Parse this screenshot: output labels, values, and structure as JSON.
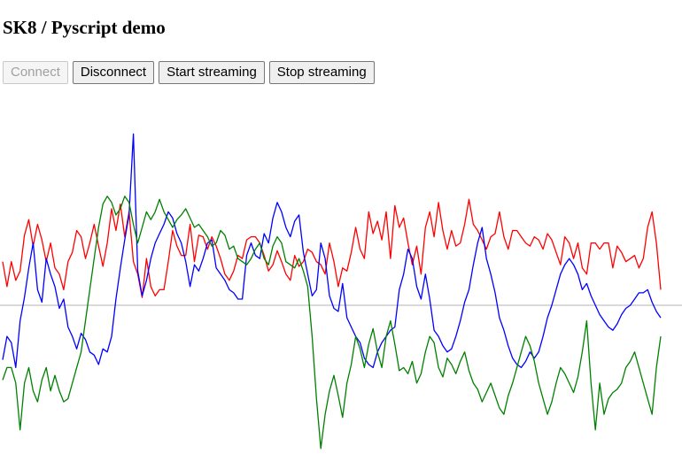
{
  "page": {
    "title": "SK8 / Pyscript demo"
  },
  "toolbar": {
    "connect_label": "Connect",
    "disconnect_label": "Disconnect",
    "start_label": "Start streaming",
    "stop_label": "Stop streaming"
  },
  "chart_data": {
    "type": "line",
    "ylim": [
      -1,
      1
    ],
    "zero_line": true,
    "grid": false,
    "series": [
      {
        "color": "#ff0000",
        "values": [
          0.28,
          0.12,
          0.28,
          0.16,
          0.22,
          0.45,
          0.55,
          0.38,
          0.52,
          0.42,
          0.28,
          0.4,
          0.24,
          0.2,
          0.1,
          0.28,
          0.34,
          0.48,
          0.44,
          0.3,
          0.4,
          0.52,
          0.38,
          0.25,
          0.4,
          0.62,
          0.48,
          0.65,
          0.44,
          0.6,
          0.28,
          0.2,
          0.05,
          0.3,
          0.12,
          0.06,
          0.1,
          0.1,
          0.28,
          0.48,
          0.38,
          0.32,
          0.32,
          0.52,
          0.28,
          0.45,
          0.44,
          0.36,
          0.44,
          0.38,
          0.3,
          0.2,
          0.16,
          0.22,
          0.32,
          0.3,
          0.42,
          0.44,
          0.44,
          0.4,
          0.32,
          0.22,
          0.26,
          0.35,
          0.28,
          0.2,
          0.16,
          0.32,
          0.25,
          0.28,
          0.36,
          0.34,
          0.28,
          0.26,
          0.2,
          0.4,
          0.28,
          0.12,
          0.24,
          0.22,
          0.34,
          0.5,
          0.36,
          0.3,
          0.6,
          0.46,
          0.54,
          0.42,
          0.6,
          0.3,
          0.64,
          0.5,
          0.56,
          0.4,
          0.26,
          0.38,
          0.2,
          0.5,
          0.6,
          0.44,
          0.66,
          0.48,
          0.36,
          0.48,
          0.38,
          0.4,
          0.52,
          0.68,
          0.52,
          0.48,
          0.42,
          0.36,
          0.44,
          0.46,
          0.6,
          0.44,
          0.36,
          0.48,
          0.48,
          0.44,
          0.4,
          0.38,
          0.44,
          0.42,
          0.36,
          0.46,
          0.42,
          0.34,
          0.26,
          0.44,
          0.4,
          0.3,
          0.4,
          0.24,
          0.2,
          0.4,
          0.4,
          0.36,
          0.4,
          0.4,
          0.24,
          0.38,
          0.34,
          0.28,
          0.3,
          0.32,
          0.24,
          0.3,
          0.5,
          0.6,
          0.4,
          0.1
        ]
      },
      {
        "color": "#0000ff",
        "values": [
          -0.35,
          -0.2,
          -0.24,
          -0.4,
          -0.1,
          0.05,
          0.24,
          0.4,
          0.1,
          0.02,
          0.3,
          0.2,
          0.12,
          -0.02,
          0.04,
          -0.14,
          -0.2,
          -0.28,
          -0.18,
          -0.22,
          -0.3,
          -0.32,
          -0.38,
          -0.28,
          -0.3,
          -0.2,
          0.04,
          0.24,
          0.42,
          0.58,
          1.1,
          0.22,
          0.06,
          0.16,
          0.3,
          0.4,
          0.46,
          0.52,
          0.6,
          0.56,
          0.46,
          0.4,
          0.28,
          0.12,
          0.26,
          0.22,
          0.3,
          0.4,
          0.42,
          0.24,
          0.2,
          0.16,
          0.1,
          0.08,
          0.04,
          0.04,
          0.32,
          0.4,
          0.32,
          0.3,
          0.46,
          0.4,
          0.56,
          0.66,
          0.6,
          0.5,
          0.44,
          0.54,
          0.58,
          0.34,
          0.2,
          0.06,
          0.1,
          0.4,
          0.3,
          0.06,
          -0.02,
          -0.04,
          0.14,
          -0.08,
          -0.14,
          -0.2,
          -0.24,
          -0.34,
          -0.38,
          -0.4,
          -0.3,
          -0.24,
          -0.2,
          -0.16,
          -0.14,
          0.1,
          0.2,
          0.36,
          0.3,
          0.12,
          0.04,
          0.2,
          0.04,
          -0.16,
          -0.2,
          -0.26,
          -0.3,
          -0.28,
          -0.2,
          -0.1,
          0.02,
          0.1,
          0.26,
          0.4,
          0.5,
          0.3,
          0.2,
          0.08,
          -0.08,
          -0.16,
          -0.26,
          -0.34,
          -0.38,
          -0.4,
          -0.36,
          -0.3,
          -0.34,
          -0.3,
          -0.2,
          -0.08,
          0.0,
          0.1,
          0.2,
          0.26,
          0.3,
          0.26,
          0.2,
          0.1,
          0.14,
          0.06,
          0.0,
          -0.06,
          -0.1,
          -0.14,
          -0.16,
          -0.12,
          -0.06,
          -0.02,
          0.0,
          0.04,
          0.08,
          0.08,
          0.1,
          0.02,
          -0.04,
          -0.08
        ]
      },
      {
        "color": "#008000",
        "values": [
          -0.48,
          -0.4,
          -0.4,
          -0.5,
          -0.8,
          -0.5,
          -0.4,
          -0.55,
          -0.62,
          -0.48,
          -0.4,
          -0.55,
          -0.45,
          -0.55,
          -0.62,
          -0.6,
          -0.5,
          -0.4,
          -0.3,
          -0.1,
          0.1,
          0.3,
          0.5,
          0.65,
          0.7,
          0.66,
          0.58,
          0.62,
          0.7,
          0.66,
          0.52,
          0.4,
          0.5,
          0.6,
          0.55,
          0.6,
          0.68,
          0.6,
          0.55,
          0.5,
          0.55,
          0.58,
          0.62,
          0.56,
          0.5,
          0.52,
          0.48,
          0.44,
          0.38,
          0.4,
          0.48,
          0.45,
          0.36,
          0.38,
          0.3,
          0.28,
          0.26,
          0.3,
          0.36,
          0.4,
          0.3,
          0.26,
          0.38,
          0.44,
          0.4,
          0.28,
          0.26,
          0.24,
          0.3,
          0.22,
          0.12,
          -0.2,
          -0.6,
          -0.92,
          -0.7,
          -0.55,
          -0.45,
          -0.58,
          -0.72,
          -0.5,
          -0.38,
          -0.2,
          -0.28,
          -0.4,
          -0.25,
          -0.15,
          -0.3,
          -0.4,
          -0.2,
          -0.1,
          -0.25,
          -0.42,
          -0.4,
          -0.44,
          -0.36,
          -0.5,
          -0.44,
          -0.3,
          -0.2,
          -0.24,
          -0.4,
          -0.46,
          -0.34,
          -0.38,
          -0.44,
          -0.36,
          -0.3,
          -0.42,
          -0.5,
          -0.54,
          -0.62,
          -0.56,
          -0.5,
          -0.58,
          -0.66,
          -0.7,
          -0.58,
          -0.5,
          -0.4,
          -0.3,
          -0.2,
          -0.26,
          -0.36,
          -0.5,
          -0.6,
          -0.7,
          -0.62,
          -0.5,
          -0.4,
          -0.44,
          -0.5,
          -0.56,
          -0.46,
          -0.3,
          -0.1,
          -0.5,
          -0.8,
          -0.5,
          -0.7,
          -0.6,
          -0.56,
          -0.54,
          -0.5,
          -0.4,
          -0.36,
          -0.3,
          -0.4,
          -0.5,
          -0.6,
          -0.7,
          -0.4,
          -0.2
        ]
      }
    ]
  }
}
